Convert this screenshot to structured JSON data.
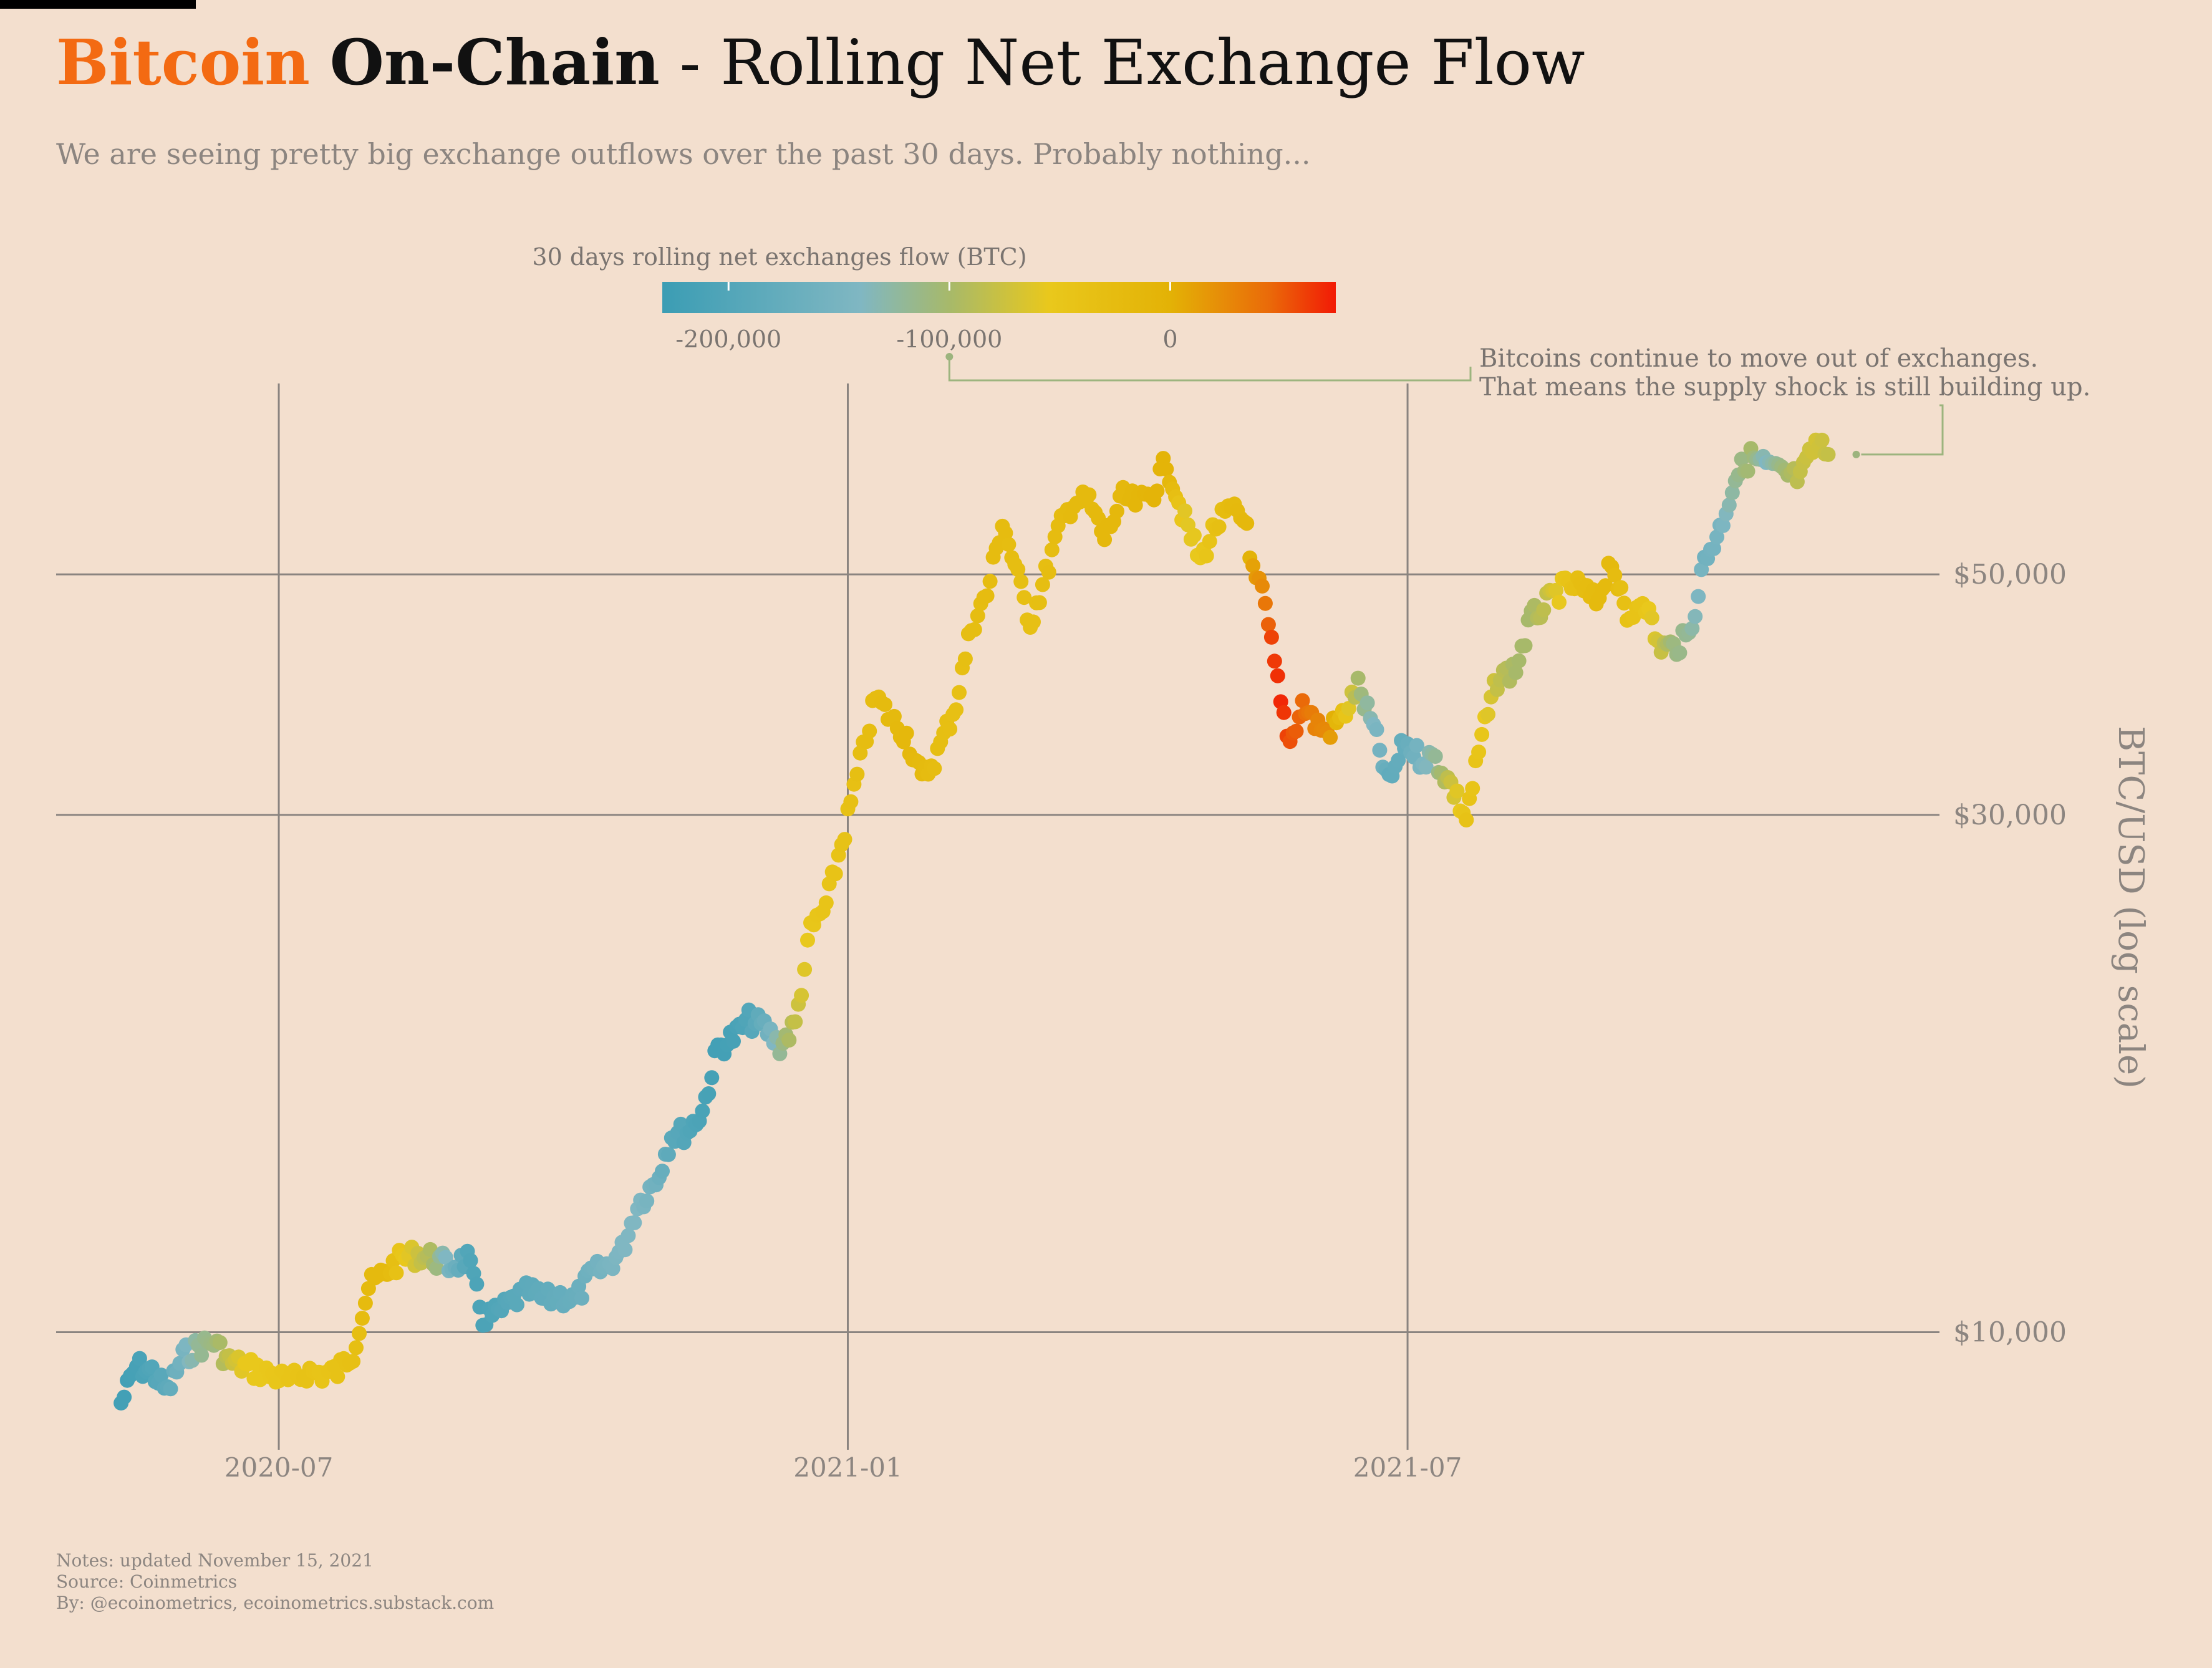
{
  "header": {
    "title_brand": "Bitcoin",
    "title_kind": "On-Chain",
    "title_rest": " - Rolling Net Exchange Flow",
    "subtitle": "We are seeing pretty big exchange outflows over the past 30 days. Probably nothing..."
  },
  "colors": {
    "background": "#f3dfce",
    "brand_orange": "#f36a12",
    "grid": "#8a8480",
    "annotation": "#9cb47e",
    "text_muted": "#8c8580"
  },
  "legend": {
    "title": "30 days rolling net exchanges flow (BTC)",
    "ticks": [
      {
        "value": -200000,
        "label": "-200,000"
      },
      {
        "value": -100000,
        "label": "-100,000"
      },
      {
        "value": 0,
        "label": "0"
      }
    ],
    "gradient": [
      {
        "value": -230000,
        "color": "#3b9db4"
      },
      {
        "value": -140000,
        "color": "#80b7c2"
      },
      {
        "value": -100000,
        "color": "#a7b96a"
      },
      {
        "value": -55000,
        "color": "#e9c81c"
      },
      {
        "value": 0,
        "color": "#e3b206"
      },
      {
        "value": 45000,
        "color": "#ea6a09"
      },
      {
        "value": 75000,
        "color": "#f21a05"
      }
    ],
    "range": [
      -230000,
      75000
    ]
  },
  "annotation": {
    "lines": [
      "Bitcoins continue to move out of exchanges.",
      "That means the supply shock is still building up."
    ],
    "target_date": "2021-11-14",
    "target_price": 64500
  },
  "chart_data": {
    "type": "scatter",
    "x_axis": {
      "type": "date",
      "range": [
        "2020-04-20",
        "2021-12-20"
      ],
      "ticks": [
        {
          "date": "2020-07-01",
          "label": "2020-07"
        },
        {
          "date": "2021-01-01",
          "label": "2021-01"
        },
        {
          "date": "2021-07-01",
          "label": "2021-07"
        }
      ]
    },
    "y_axis": {
      "label": "BTC/USD (log scale)",
      "scale": "log",
      "range": [
        8000,
        75000
      ],
      "side": "right",
      "ticks": [
        {
          "value": 10000,
          "label": "$10,000"
        },
        {
          "value": 30000,
          "label": "$30,000"
        },
        {
          "value": 50000,
          "label": "$50,000"
        }
      ]
    },
    "grid": true,
    "color_by": "net_flow",
    "points_format": "[date, price_usd, net_flow_btc]",
    "points": [
      [
        "2020-05-11",
        8600,
        -220000
      ],
      [
        "2020-05-16",
        9300,
        -215000
      ],
      [
        "2020-05-21",
        9200,
        -200000
      ],
      [
        "2020-05-26",
        8800,
        -185000
      ],
      [
        "2020-05-31",
        9500,
        -150000
      ],
      [
        "2020-06-05",
        9700,
        -120000
      ],
      [
        "2020-06-10",
        9800,
        -110000
      ],
      [
        "2020-06-15",
        9400,
        -80000
      ],
      [
        "2020-06-20",
        9300,
        -55000
      ],
      [
        "2020-06-25",
        9200,
        -55000
      ],
      [
        "2020-06-30",
        9100,
        -50000
      ],
      [
        "2020-07-05",
        9000,
        -45000
      ],
      [
        "2020-07-10",
        9200,
        -40000
      ],
      [
        "2020-07-15",
        9150,
        -45000
      ],
      [
        "2020-07-20",
        9200,
        -40000
      ],
      [
        "2020-07-25",
        9600,
        -35000
      ],
      [
        "2020-07-30",
        11000,
        -20000
      ],
      [
        "2020-08-05",
        11400,
        -20000
      ],
      [
        "2020-08-10",
        11700,
        -50000
      ],
      [
        "2020-08-15",
        11800,
        -75000
      ],
      [
        "2020-08-20",
        11700,
        -100000
      ],
      [
        "2020-08-25",
        11500,
        -150000
      ],
      [
        "2020-08-31",
        11700,
        -200000
      ],
      [
        "2020-09-05",
        10300,
        -210000
      ],
      [
        "2020-09-10",
        10400,
        -200000
      ],
      [
        "2020-09-15",
        10700,
        -190000
      ],
      [
        "2020-09-20",
        10900,
        -185000
      ],
      [
        "2020-09-25",
        10700,
        -180000
      ],
      [
        "2020-09-30",
        10800,
        -175000
      ],
      [
        "2020-10-05",
        10700,
        -170000
      ],
      [
        "2020-10-10",
        11300,
        -160000
      ],
      [
        "2020-10-15",
        11500,
        -150000
      ],
      [
        "2020-10-20",
        11900,
        -140000
      ],
      [
        "2020-10-25",
        13100,
        -140000
      ],
      [
        "2020-10-31",
        13800,
        -160000
      ],
      [
        "2020-11-05",
        15200,
        -190000
      ],
      [
        "2020-11-10",
        15300,
        -200000
      ],
      [
        "2020-11-15",
        16000,
        -210000
      ],
      [
        "2020-11-20",
        18300,
        -220000
      ],
      [
        "2020-11-25",
        18700,
        -215000
      ],
      [
        "2020-11-30",
        19400,
        -200000
      ],
      [
        "2020-12-05",
        19100,
        -170000
      ],
      [
        "2020-12-10",
        18400,
        -120000
      ],
      [
        "2020-12-15",
        19200,
        -80000
      ],
      [
        "2020-12-20",
        23500,
        -50000
      ],
      [
        "2020-12-25",
        24700,
        -45000
      ],
      [
        "2020-12-31",
        29000,
        -40000
      ],
      [
        "2021-01-05",
        33500,
        -30000
      ],
      [
        "2021-01-10",
        38500,
        -25000
      ],
      [
        "2021-01-15",
        36800,
        -20000
      ],
      [
        "2021-01-20",
        35500,
        -15000
      ],
      [
        "2021-01-25",
        32300,
        -20000
      ],
      [
        "2021-01-30",
        34200,
        -30000
      ],
      [
        "2021-02-05",
        38000,
        -35000
      ],
      [
        "2021-02-10",
        44800,
        -30000
      ],
      [
        "2021-02-15",
        47900,
        -25000
      ],
      [
        "2021-02-20",
        56000,
        -25000
      ],
      [
        "2021-02-25",
        49600,
        -30000
      ],
      [
        "2021-03-01",
        45200,
        -35000
      ],
      [
        "2021-03-05",
        48800,
        -30000
      ],
      [
        "2021-03-10",
        54800,
        -25000
      ],
      [
        "2021-03-15",
        58500,
        -20000
      ],
      [
        "2021-03-20",
        58300,
        -20000
      ],
      [
        "2021-03-25",
        54000,
        -15000
      ],
      [
        "2021-03-31",
        58800,
        -15000
      ],
      [
        "2021-04-05",
        58100,
        -10000
      ],
      [
        "2021-04-10",
        59800,
        -5000
      ],
      [
        "2021-04-14",
        63500,
        -5000
      ],
      [
        "2021-04-20",
        56000,
        -60000
      ],
      [
        "2021-04-25",
        51500,
        -55000
      ],
      [
        "2021-04-30",
        55500,
        -35000
      ],
      [
        "2021-05-05",
        57200,
        -20000
      ],
      [
        "2021-05-10",
        55800,
        -15000
      ],
      [
        "2021-05-12",
        50000,
        10000
      ],
      [
        "2021-05-15",
        48000,
        25000
      ],
      [
        "2021-05-18",
        43000,
        60000
      ],
      [
        "2021-05-21",
        38000,
        70000
      ],
      [
        "2021-05-24",
        35000,
        55000
      ],
      [
        "2021-05-28",
        38000,
        45000
      ],
      [
        "2021-06-01",
        36500,
        30000
      ],
      [
        "2021-06-05",
        35700,
        25000
      ],
      [
        "2021-06-10",
        37000,
        -35000
      ],
      [
        "2021-06-15",
        39400,
        -100000
      ],
      [
        "2021-06-20",
        36000,
        -140000
      ],
      [
        "2021-06-25",
        32000,
        -180000
      ],
      [
        "2021-06-30",
        35000,
        -175000
      ],
      [
        "2021-07-05",
        33900,
        -150000
      ],
      [
        "2021-07-10",
        33800,
        -120000
      ],
      [
        "2021-07-15",
        32000,
        -75000
      ],
      [
        "2021-07-20",
        29800,
        -40000
      ],
      [
        "2021-07-25",
        35400,
        -50000
      ],
      [
        "2021-07-30",
        40000,
        -80000
      ],
      [
        "2021-08-05",
        41000,
        -100000
      ],
      [
        "2021-08-10",
        45500,
        -100000
      ],
      [
        "2021-08-15",
        47000,
        -80000
      ],
      [
        "2021-08-20",
        48500,
        -50000
      ],
      [
        "2021-08-25",
        48800,
        -30000
      ],
      [
        "2021-08-31",
        47100,
        -20000
      ],
      [
        "2021-09-05",
        51700,
        -20000
      ],
      [
        "2021-09-10",
        45000,
        -40000
      ],
      [
        "2021-09-15",
        48000,
        -45000
      ],
      [
        "2021-09-20",
        43000,
        -70000
      ],
      [
        "2021-09-25",
        42800,
        -110000
      ],
      [
        "2021-09-30",
        43800,
        -120000
      ],
      [
        "2021-10-05",
        51500,
        -160000
      ],
      [
        "2021-10-10",
        55000,
        -150000
      ],
      [
        "2021-10-15",
        61500,
        -120000
      ],
      [
        "2021-10-20",
        64200,
        -100000
      ],
      [
        "2021-10-25",
        63000,
        -140000
      ],
      [
        "2021-10-30",
        61900,
        -110000
      ],
      [
        "2021-11-05",
        61300,
        -80000
      ],
      [
        "2021-11-10",
        66000,
        -70000
      ],
      [
        "2021-11-14",
        64500,
        -80000
      ]
    ]
  },
  "footer": {
    "notes": "Notes: updated November 15, 2021",
    "source": "Source: Coinmetrics",
    "by": "By: @ecoinometrics, ecoinometrics.substack.com"
  }
}
